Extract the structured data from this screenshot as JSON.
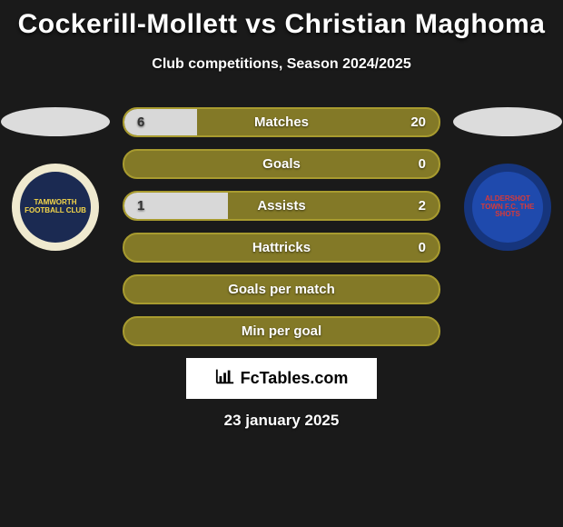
{
  "title": "Cockerill-Mollett vs Christian Maghoma",
  "subtitle": "Club competitions, Season 2024/2025",
  "date": "23 january 2025",
  "credit_label": "FcTables.com",
  "colors": {
    "olive": "#a89b2f",
    "olive_fill": "#837927",
    "white_fill": "#d8d8d8",
    "ellipse": "#dcdcdc",
    "badge_left_outer": "#efe9cf",
    "badge_left_inner": "#1b2a52",
    "badge_left_text": "#f4d64a",
    "badge_right_outer": "#16357d",
    "badge_right_inner": "#1f4aad",
    "badge_right_text": "#d63a3a"
  },
  "badges": {
    "left": {
      "name": "tamworth-badge",
      "text": "TAMWORTH FOOTBALL CLUB"
    },
    "right": {
      "name": "aldershot-badge",
      "text": "ALDERSHOT TOWN F.C. THE SHOTS"
    }
  },
  "bars": [
    {
      "label": "Matches",
      "left": "6",
      "right": "20",
      "fill_pct": 23,
      "fill_side": "white"
    },
    {
      "label": "Goals",
      "left": "",
      "right": "0",
      "fill_pct": 0,
      "fill_side": "none"
    },
    {
      "label": "Assists",
      "left": "1",
      "right": "2",
      "fill_pct": 33,
      "fill_side": "white"
    },
    {
      "label": "Hattricks",
      "left": "",
      "right": "0",
      "fill_pct": 0,
      "fill_side": "none"
    },
    {
      "label": "Goals per match",
      "left": "",
      "right": "",
      "fill_pct": 0,
      "fill_side": "none"
    },
    {
      "label": "Min per goal",
      "left": "",
      "right": "",
      "fill_pct": 0,
      "fill_side": "none"
    }
  ]
}
